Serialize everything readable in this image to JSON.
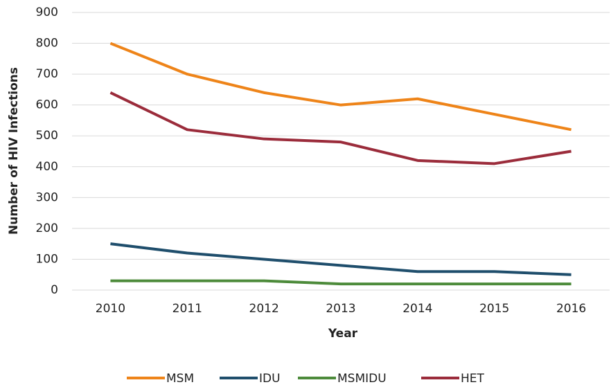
{
  "chart_data": {
    "type": "line",
    "x_label": "Year",
    "y_label": "Number of HIV Infections",
    "categories": [
      "2010",
      "2011",
      "2012",
      "2013",
      "2014",
      "2015",
      "2016"
    ],
    "series": [
      {
        "name": "MSM",
        "color": "#ee8419",
        "values": [
          800,
          700,
          640,
          600,
          620,
          570,
          520
        ]
      },
      {
        "name": "IDU",
        "color": "#1f4e6c",
        "values": [
          150,
          120,
          100,
          80,
          60,
          60,
          50
        ]
      },
      {
        "name": "MSMIDU",
        "color": "#4d8b3b",
        "values": [
          30,
          30,
          30,
          20,
          20,
          20,
          20
        ]
      },
      {
        "name": "HET",
        "color": "#9b2c3b",
        "values": [
          640,
          520,
          490,
          480,
          420,
          410,
          450
        ]
      }
    ],
    "ylim": [
      0,
      900
    ],
    "yticks": [
      0,
      100,
      200,
      300,
      400,
      500,
      600,
      700,
      800,
      900
    ],
    "grid": true,
    "legend": "bottom"
  }
}
